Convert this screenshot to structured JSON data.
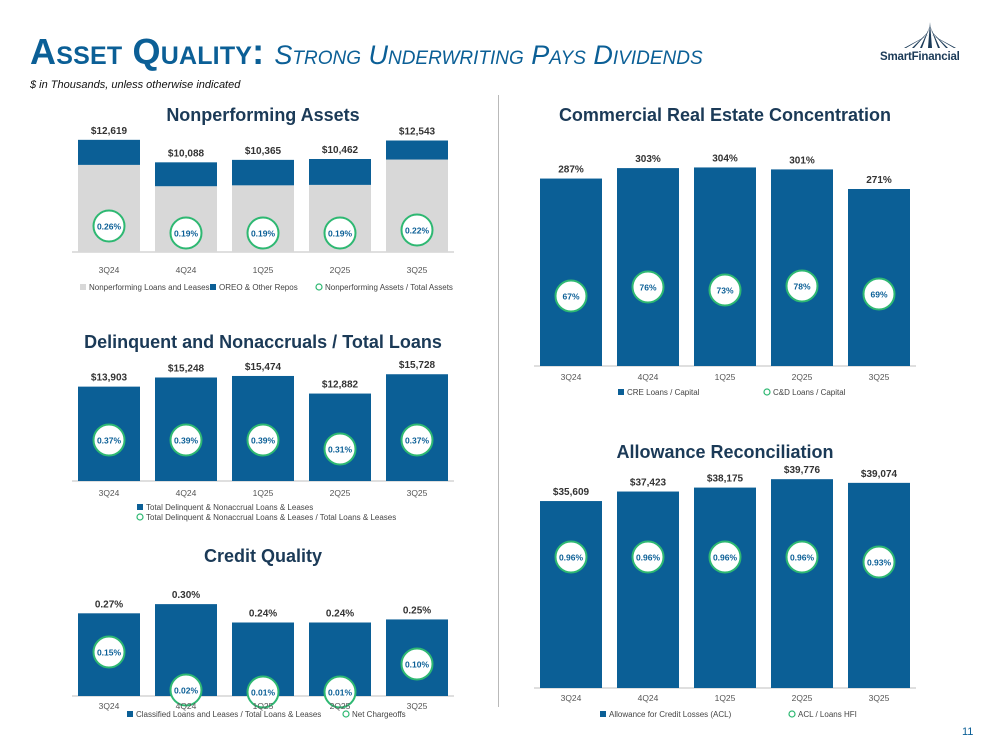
{
  "header": {
    "title_lead": "Asset Quality:",
    "title_rest": "Strong Underwriting Pays Dividends",
    "subtitle": "$ in Thousands, unless otherwise indicated",
    "logo_text": "SmartFinancial"
  },
  "footer": {
    "page_number": "11"
  },
  "colors": {
    "bar_blue": "#0b5f96",
    "bar_gray": "#d8d8d8",
    "circle_green": "#2eb872",
    "title_blue": "#0b5f96"
  },
  "chart_data": [
    {
      "id": "npa",
      "type": "bar",
      "stacked": true,
      "title": "Nonperforming Assets",
      "categories": [
        "3Q24",
        "4Q24",
        "1Q25",
        "2Q25",
        "3Q25"
      ],
      "series": [
        {
          "name": "Nonperforming Loans and Leases",
          "values": [
            9800,
            7400,
            7500,
            7550,
            10400
          ]
        },
        {
          "name": "OREO & Other Repos",
          "values": [
            2819,
            2688,
            2865,
            2912,
            2143
          ]
        }
      ],
      "totals": [
        "$12,619",
        "$10,088",
        "$10,365",
        "$10,462",
        "$12,543"
      ],
      "overlay": {
        "name": "Nonperforming Assets / Total Assets",
        "labels": [
          "0.26%",
          "0.19%",
          "0.19%",
          "0.19%",
          "0.22%"
        ]
      },
      "ylim": [
        0,
        13500
      ]
    },
    {
      "id": "delinq",
      "type": "bar",
      "title": "Delinquent and Nonaccruals / Total Loans",
      "categories": [
        "3Q24",
        "4Q24",
        "1Q25",
        "2Q25",
        "3Q25"
      ],
      "series": [
        {
          "name": "Total Delinquent & Nonaccrual Loans & Leases",
          "values": [
            13903,
            15248,
            15474,
            12882,
            15728
          ]
        }
      ],
      "value_labels": [
        "$13,903",
        "$15,248",
        "$15,474",
        "$12,882",
        "$15,728"
      ],
      "overlay": {
        "name": "Total Delinquent & Nonaccrual Loans & Leases / Total Loans & Leases",
        "labels": [
          "0.37%",
          "0.39%",
          "0.39%",
          "0.31%",
          "0.37%"
        ]
      },
      "ylim": [
        0,
        16500
      ]
    },
    {
      "id": "credit",
      "type": "bar",
      "title": "Credit Quality",
      "categories": [
        "3Q24",
        "4Q24",
        "1Q25",
        "2Q25",
        "3Q25"
      ],
      "series": [
        {
          "name": "Classified Loans and Leases / Total Loans & Leases",
          "values": [
            0.27,
            0.3,
            0.24,
            0.24,
            0.25
          ]
        }
      ],
      "value_labels": [
        "0.27%",
        "0.30%",
        "0.24%",
        "0.24%",
        "0.25%"
      ],
      "overlay": {
        "name": "Net Chargeoffs",
        "values": [
          0.15,
          0.02,
          0.01,
          0.01,
          0.1
        ],
        "labels": [
          "0.15%",
          "0.02%",
          "0.01%",
          "0.01%",
          "0.10%"
        ]
      },
      "ylim": [
        0,
        0.32
      ]
    },
    {
      "id": "cre",
      "type": "bar",
      "title": "Commercial Real Estate Concentration",
      "categories": [
        "3Q24",
        "4Q24",
        "1Q25",
        "2Q25",
        "3Q25"
      ],
      "series": [
        {
          "name": "CRE Loans / Capital",
          "values": [
            287,
            303,
            304,
            301,
            271
          ]
        }
      ],
      "value_labels": [
        "287%",
        "303%",
        "304%",
        "301%",
        "271%"
      ],
      "overlay": {
        "name": "C&D Loans / Capital",
        "values": [
          67,
          76,
          73,
          78,
          69
        ],
        "labels": [
          "67%",
          "76%",
          "73%",
          "78%",
          "69%"
        ]
      },
      "ylim": [
        0,
        320
      ]
    },
    {
      "id": "acl",
      "type": "bar",
      "title": "Allowance Reconciliation",
      "categories": [
        "3Q24",
        "4Q24",
        "1Q25",
        "2Q25",
        "3Q25"
      ],
      "series": [
        {
          "name": "Allowance for Credit Losses (ACL)",
          "values": [
            35609,
            37423,
            38175,
            39776,
            39074
          ]
        }
      ],
      "value_labels": [
        "$35,609",
        "$37,423",
        "$38,175",
        "$39,776",
        "$39,074"
      ],
      "overlay": {
        "name": "ACL / Loans HFI",
        "values": [
          0.96,
          0.96,
          0.96,
          0.96,
          0.93
        ],
        "labels": [
          "0.96%",
          "0.96%",
          "0.96%",
          "0.96%",
          "0.93%"
        ]
      },
      "ylim": [
        0,
        40000
      ]
    }
  ]
}
